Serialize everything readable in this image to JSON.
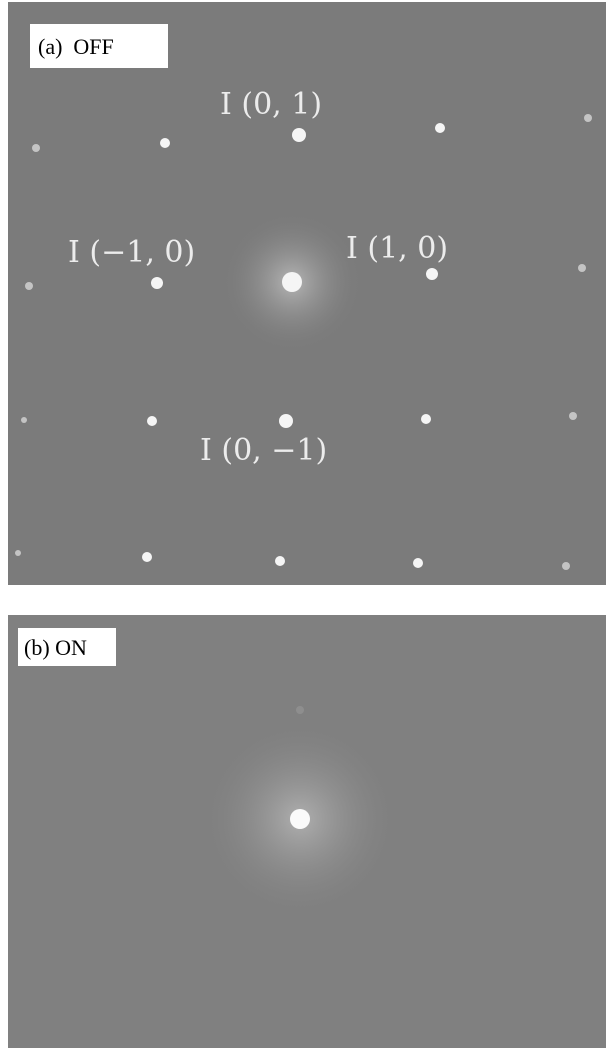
{
  "panels": [
    {
      "label": "(a)  OFF",
      "spot_labels": [
        "I (0, 1)",
        "I (−1, 0)",
        "I (1, 0)",
        "I (0, −1)"
      ]
    },
    {
      "label": "(b) ON"
    }
  ]
}
